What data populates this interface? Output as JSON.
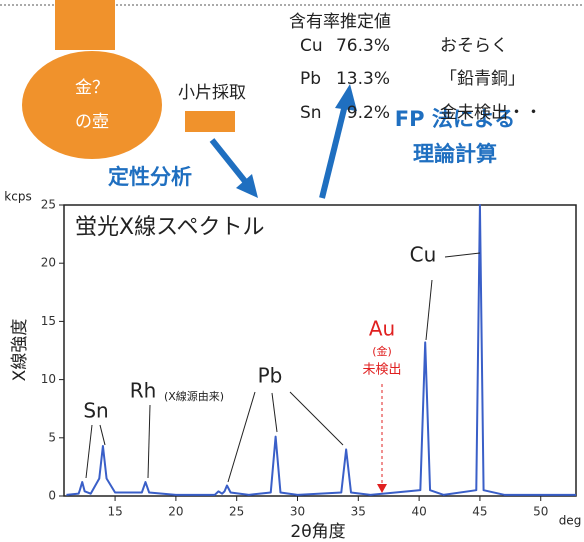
{
  "diagram": {
    "pot_label": [
      "金？",
      "の壺"
    ],
    "sample_label": "小片採取",
    "qualitative": "定性分析",
    "fp_method": [
      "FP 法による",
      "理論計算"
    ],
    "content_title": "含有率推定値",
    "contents": [
      {
        "element": "Cu",
        "value": "76.3%"
      },
      {
        "element": "Pb",
        "value": "13.3%"
      },
      {
        "element": "Sn",
        "value": "9.2%"
      }
    ],
    "conclusion": [
      "おそらく",
      "「鉛青銅」",
      "金未検出・・"
    ]
  },
  "chart_data": {
    "type": "line",
    "title": "蛍光X線スペクトル",
    "x_label": "2θ角度",
    "y_label": "X線強度",
    "y_unit": "kcps",
    "x_unit": "deg",
    "xlim": [
      10.8,
      52.9
    ],
    "ylim": [
      0,
      25
    ],
    "xticks": [
      15,
      20,
      25,
      30,
      35,
      40,
      45,
      50
    ],
    "yticks": [
      0,
      5,
      10,
      15,
      20,
      25
    ],
    "x": [
      11,
      12,
      12.1,
      12.3,
      12.5,
      13,
      13.7,
      14.0,
      14.3,
      15,
      17.2,
      17.5,
      17.8,
      20,
      23.2,
      23.5,
      23.8,
      24.0,
      24.2,
      24.5,
      26,
      27.8,
      28.2,
      28.6,
      30,
      33.6,
      34.0,
      34.4,
      36,
      40.1,
      40.5,
      40.9,
      42,
      44.7,
      45.0,
      45.3,
      47,
      52.9
    ],
    "series": [
      {
        "color": "#3a5fc8",
        "values": [
          0.1,
          0.2,
          0.5,
          1.2,
          0.4,
          0.2,
          1.5,
          4.3,
          1.5,
          0.3,
          0.3,
          1.2,
          0.3,
          0.1,
          0.1,
          0.4,
          0.2,
          0.4,
          0.9,
          0.3,
          0.1,
          0.3,
          5.1,
          0.3,
          0.1,
          0.3,
          4.0,
          0.3,
          0.1,
          0.5,
          13.2,
          0.5,
          0.1,
          0.5,
          25,
          0.5,
          0.1,
          0.1
        ]
      }
    ],
    "annotations": [
      "Sn",
      "Rh",
      "(X線源由来)",
      "Pb",
      "Cu",
      "Au",
      "(金)",
      "未検出"
    ]
  }
}
